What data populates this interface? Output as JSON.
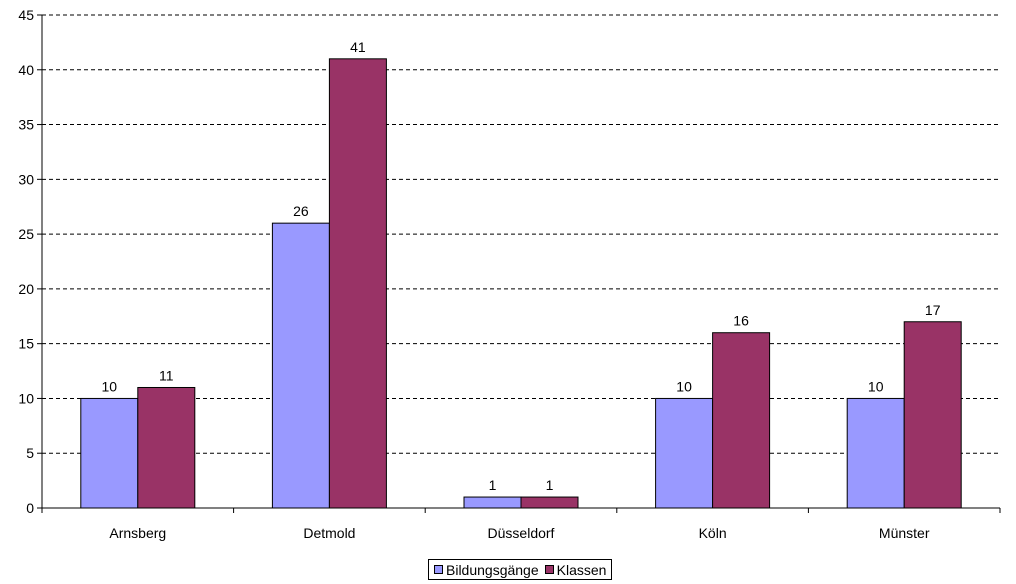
{
  "chart_data": {
    "type": "bar",
    "title": "",
    "xlabel": "",
    "ylabel": "",
    "categories": [
      "Arnsberg",
      "Detmold",
      "Düsseldorf",
      "Köln",
      "Münster"
    ],
    "series": [
      {
        "name": "Bildungsgänge",
        "values": [
          10,
          26,
          1,
          10,
          10
        ],
        "color": "#9999ff"
      },
      {
        "name": "Klassen",
        "values": [
          11,
          41,
          1,
          16,
          17
        ],
        "color": "#993366"
      }
    ],
    "ylim": [
      0,
      45
    ],
    "ytick_step": 5,
    "yticks": [
      "0",
      "5",
      "10",
      "15",
      "20",
      "25",
      "30",
      "35",
      "40",
      "45"
    ],
    "grid": true,
    "grid_style": "dashed",
    "data_labels": true,
    "legend_position": "bottom"
  }
}
